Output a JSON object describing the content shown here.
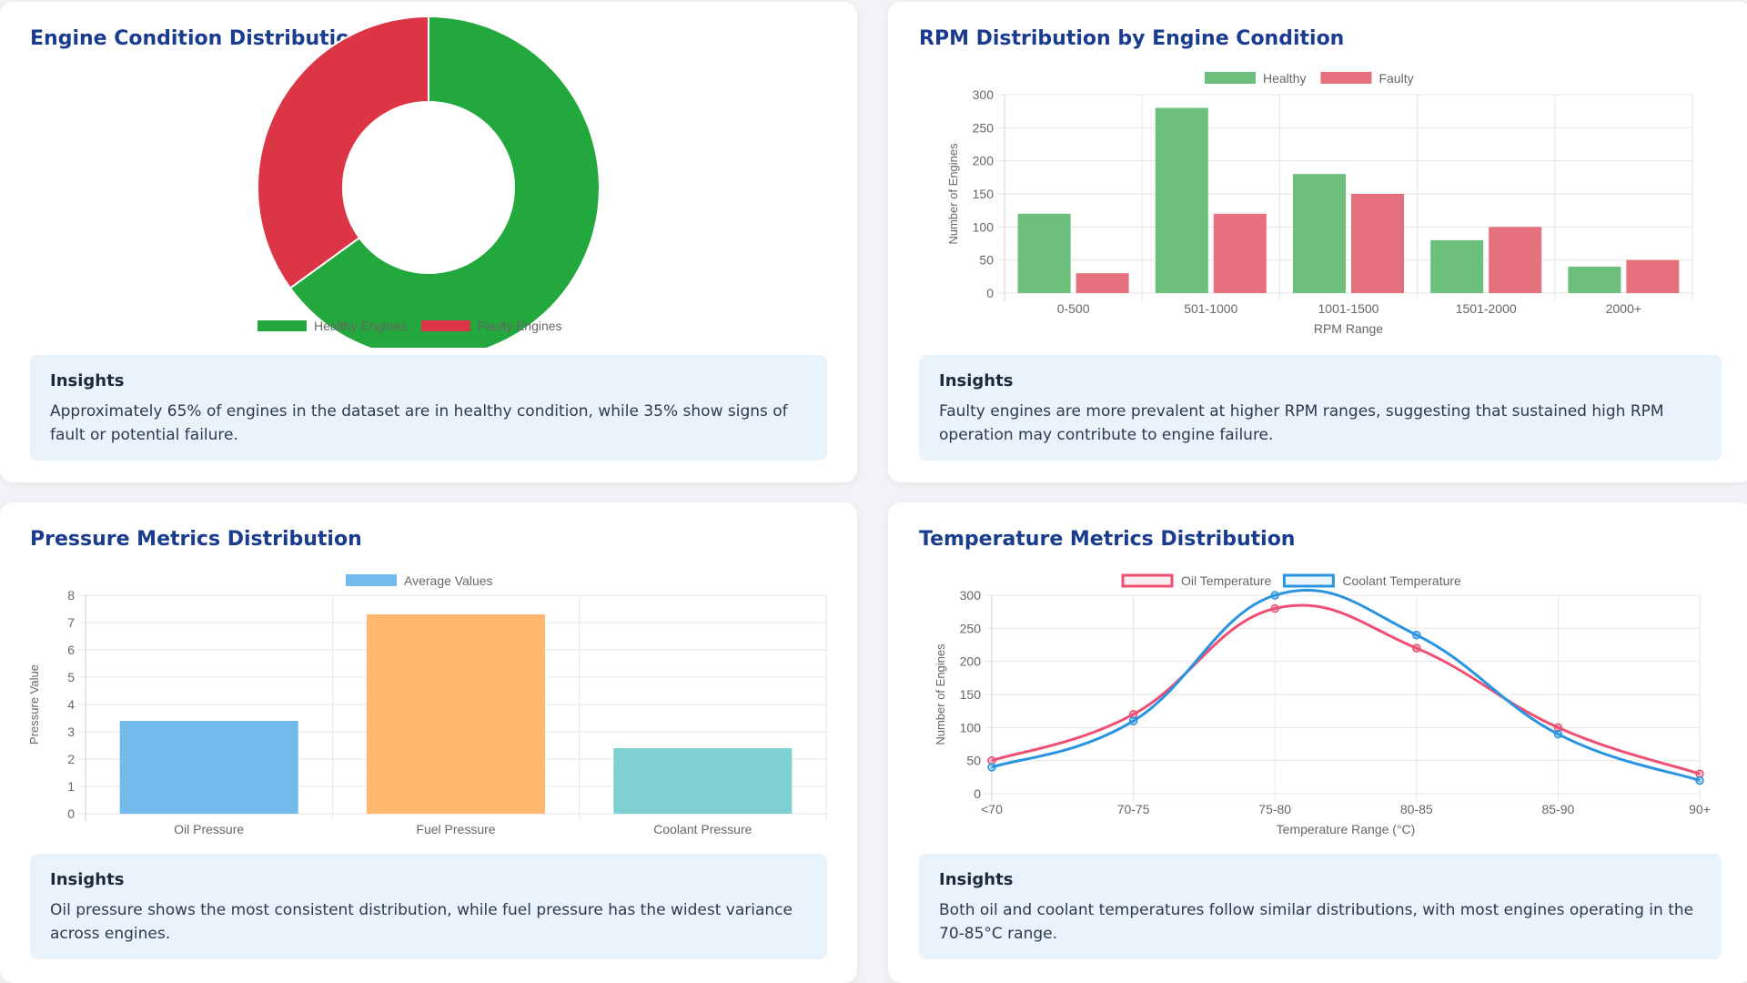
{
  "colors": {
    "healthy": "#22a83d",
    "faulty": "#dc3545",
    "healthy_bar": "#6cc07b",
    "faulty_bar": "#e4717d",
    "oil": "#ef4f72",
    "coolant": "#2a94e1",
    "avg1": "#72b9ec",
    "avg2": "#ffb86e",
    "avg3": "#7fd1d1"
  },
  "cards": {
    "engine": {
      "title": "Engine Condition Distribution",
      "insight_title": "Insights",
      "insight_text": "Approximately 65% of engines in the dataset are in healthy condition, while 35% show signs of fault or potential failure."
    },
    "rpm": {
      "title": "RPM Distribution by Engine Condition",
      "insight_title": "Insights",
      "insight_text": "Faulty engines are more prevalent at higher RPM ranges, suggesting that sustained high RPM operation may contribute to engine failure."
    },
    "pressure": {
      "title": "Pressure Metrics Distribution",
      "insight_title": "Insights",
      "insight_text": "Oil pressure shows the most consistent distribution, while fuel pressure has the widest variance across engines."
    },
    "temperature": {
      "title": "Temperature Metrics Distribution",
      "insight_title": "Insights",
      "insight_text": "Both oil and coolant temperatures follow similar distributions, with most engines operating in the 70-85°C range."
    }
  },
  "chart_data": [
    {
      "type": "pie",
      "variant": "doughnut",
      "labels": [
        "Healthy Engines",
        "Faulty Engines"
      ],
      "values": [
        65,
        35
      ],
      "legend": "bottom"
    },
    {
      "type": "bar",
      "categories": [
        "0-500",
        "501-1000",
        "1001-1500",
        "1501-2000",
        "2000+"
      ],
      "series": [
        {
          "name": "Healthy",
          "values": [
            120,
            280,
            180,
            80,
            40
          ]
        },
        {
          "name": "Faulty",
          "values": [
            30,
            120,
            150,
            100,
            50
          ]
        }
      ],
      "xlabel": "RPM Range",
      "ylabel": "Number of Engines",
      "ylim": [
        0,
        300
      ],
      "yticks": [
        "0",
        "50",
        "100",
        "150",
        "200",
        "250",
        "300"
      ],
      "legend": "top"
    },
    {
      "type": "bar",
      "categories": [
        "Oil Pressure",
        "Fuel Pressure",
        "Coolant Pressure"
      ],
      "series": [
        {
          "name": "Average Values",
          "values": [
            3.4,
            7.3,
            2.4
          ]
        }
      ],
      "xlabel": "",
      "ylabel": "Pressure Value",
      "ylim": [
        0,
        8
      ],
      "yticks": [
        "0",
        "1",
        "2",
        "3",
        "4",
        "5",
        "6",
        "7",
        "8"
      ],
      "legend": "top"
    },
    {
      "type": "line",
      "x": [
        "<70",
        "70-75",
        "75-80",
        "80-85",
        "85-90",
        "90+"
      ],
      "series": [
        {
          "name": "Oil Temperature",
          "values": [
            50,
            120,
            280,
            220,
            100,
            30
          ]
        },
        {
          "name": "Coolant Temperature",
          "values": [
            40,
            110,
            300,
            240,
            90,
            20
          ]
        }
      ],
      "xlabel": "Temperature Range (°C)",
      "ylabel": "Number of Engines",
      "ylim": [
        0,
        300
      ],
      "yticks": [
        "0",
        "50",
        "100",
        "150",
        "200",
        "250",
        "300"
      ],
      "legend": "top"
    }
  ]
}
